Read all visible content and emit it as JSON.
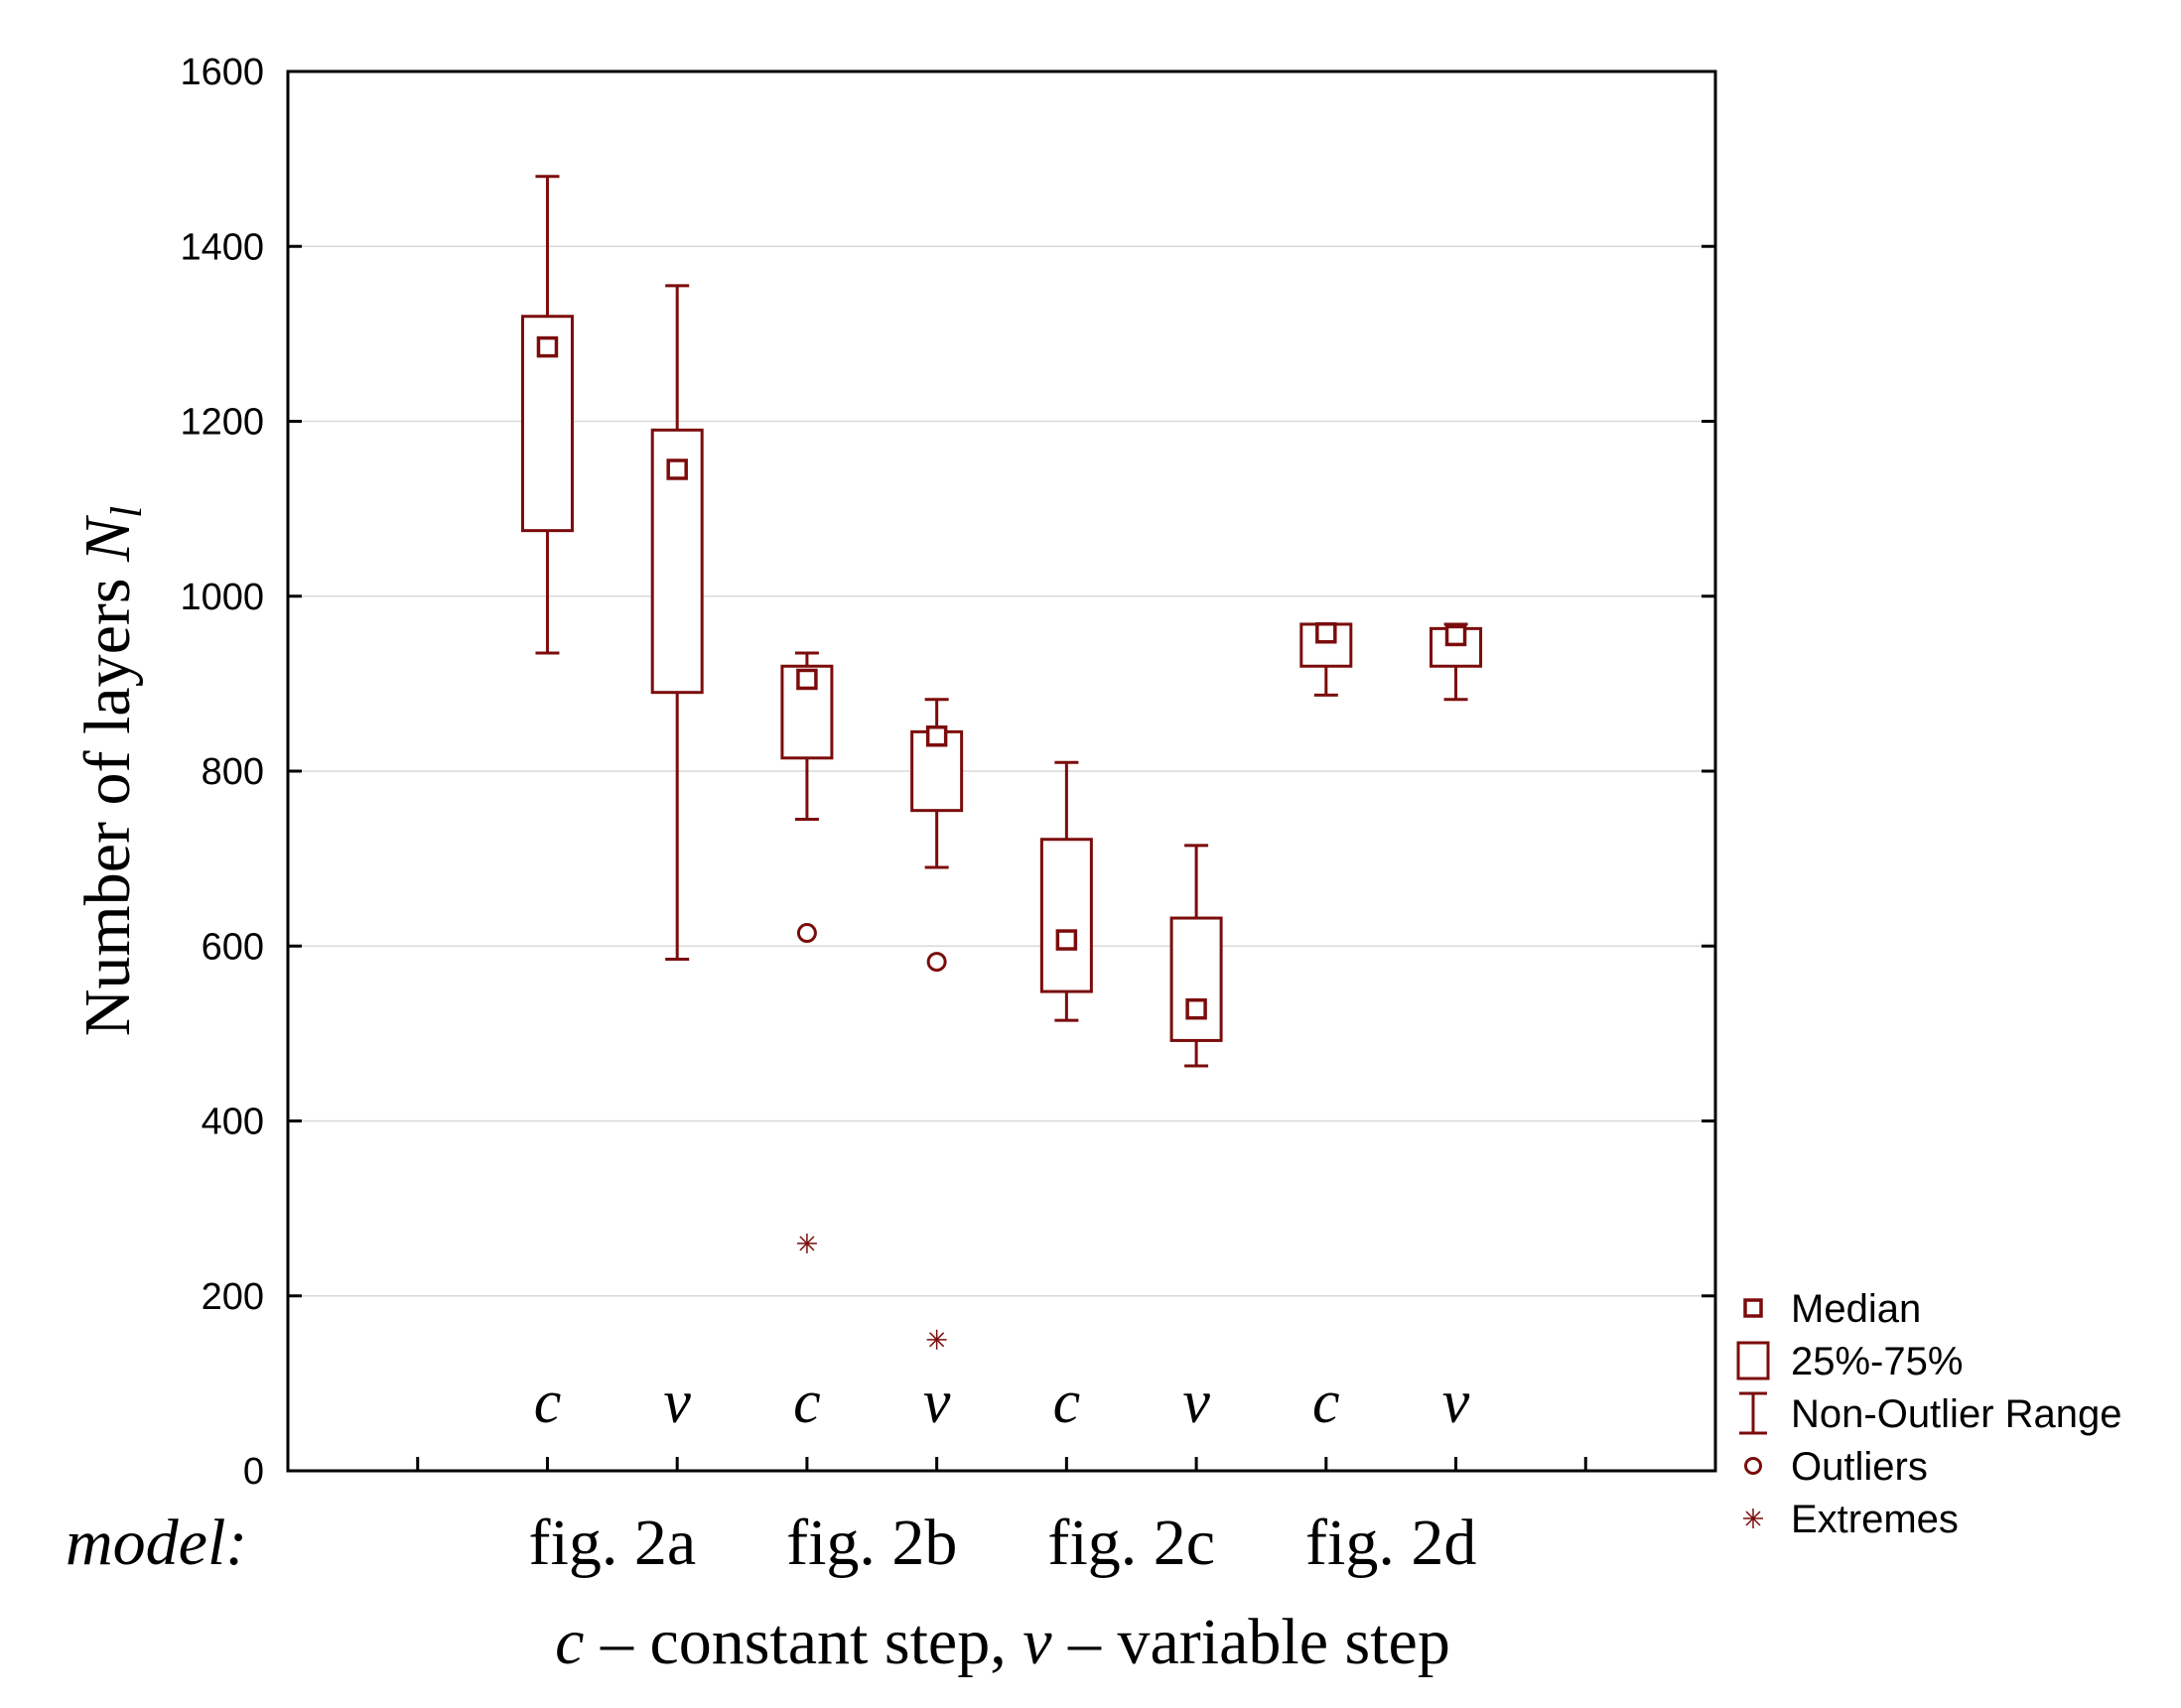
{
  "chart_data": {
    "type": "box",
    "ylabel": "Number of layers",
    "ylabel_symbol": "N",
    "ylabel_subscript": "l",
    "ylim": [
      0,
      1600
    ],
    "yticks": [
      0,
      200,
      400,
      600,
      800,
      1000,
      1200,
      1400,
      1600
    ],
    "grid": true,
    "model_label": "model:",
    "groups": [
      "fig. 2a",
      "fig. 2b",
      "fig. 2c",
      "fig. 2d"
    ],
    "footnote": {
      "c": "c",
      "c_text": " – constant step, ",
      "v": "v",
      "v_text": " – variable step"
    },
    "color": "#7b0c0c",
    "boxes": [
      {
        "group": "fig. 2a",
        "step": "c",
        "whisker_low": 935,
        "q1": 1075,
        "median": 1285,
        "q3": 1320,
        "whisker_high": 1480,
        "outliers": [],
        "extremes": []
      },
      {
        "group": "fig. 2a",
        "step": "v",
        "whisker_low": 585,
        "q1": 890,
        "median": 1145,
        "q3": 1190,
        "whisker_high": 1355,
        "outliers": [],
        "extremes": []
      },
      {
        "group": "fig. 2b",
        "step": "c",
        "whisker_low": 745,
        "q1": 815,
        "median": 905,
        "q3": 920,
        "whisker_high": 935,
        "outliers": [
          615
        ],
        "extremes": [
          260
        ]
      },
      {
        "group": "fig. 2b",
        "step": "v",
        "whisker_low": 690,
        "q1": 755,
        "median": 840,
        "q3": 845,
        "whisker_high": 882,
        "outliers": [
          582
        ],
        "extremes": [
          150
        ]
      },
      {
        "group": "fig. 2c",
        "step": "c",
        "whisker_low": 515,
        "q1": 548,
        "median": 607,
        "q3": 722,
        "whisker_high": 810,
        "outliers": [],
        "extremes": []
      },
      {
        "group": "fig. 2c",
        "step": "v",
        "whisker_low": 463,
        "q1": 492,
        "median": 528,
        "q3": 632,
        "whisker_high": 715,
        "outliers": [],
        "extremes": []
      },
      {
        "group": "fig. 2d",
        "step": "c",
        "whisker_low": 887,
        "q1": 920,
        "median": 958,
        "q3": 968,
        "whisker_high": 968,
        "outliers": [],
        "extremes": []
      },
      {
        "group": "fig. 2d",
        "step": "v",
        "whisker_low": 882,
        "q1": 920,
        "median": 955,
        "q3": 963,
        "whisker_high": 968,
        "outliers": [],
        "extremes": []
      }
    ],
    "legend": {
      "position": "bottom-right",
      "items": [
        {
          "marker": "median-square",
          "label": "Median"
        },
        {
          "marker": "box",
          "label": "25%-75%"
        },
        {
          "marker": "whisker",
          "label": "Non-Outlier Range"
        },
        {
          "marker": "circle",
          "label": "Outliers"
        },
        {
          "marker": "asterisk",
          "label": "Extremes"
        }
      ]
    }
  }
}
